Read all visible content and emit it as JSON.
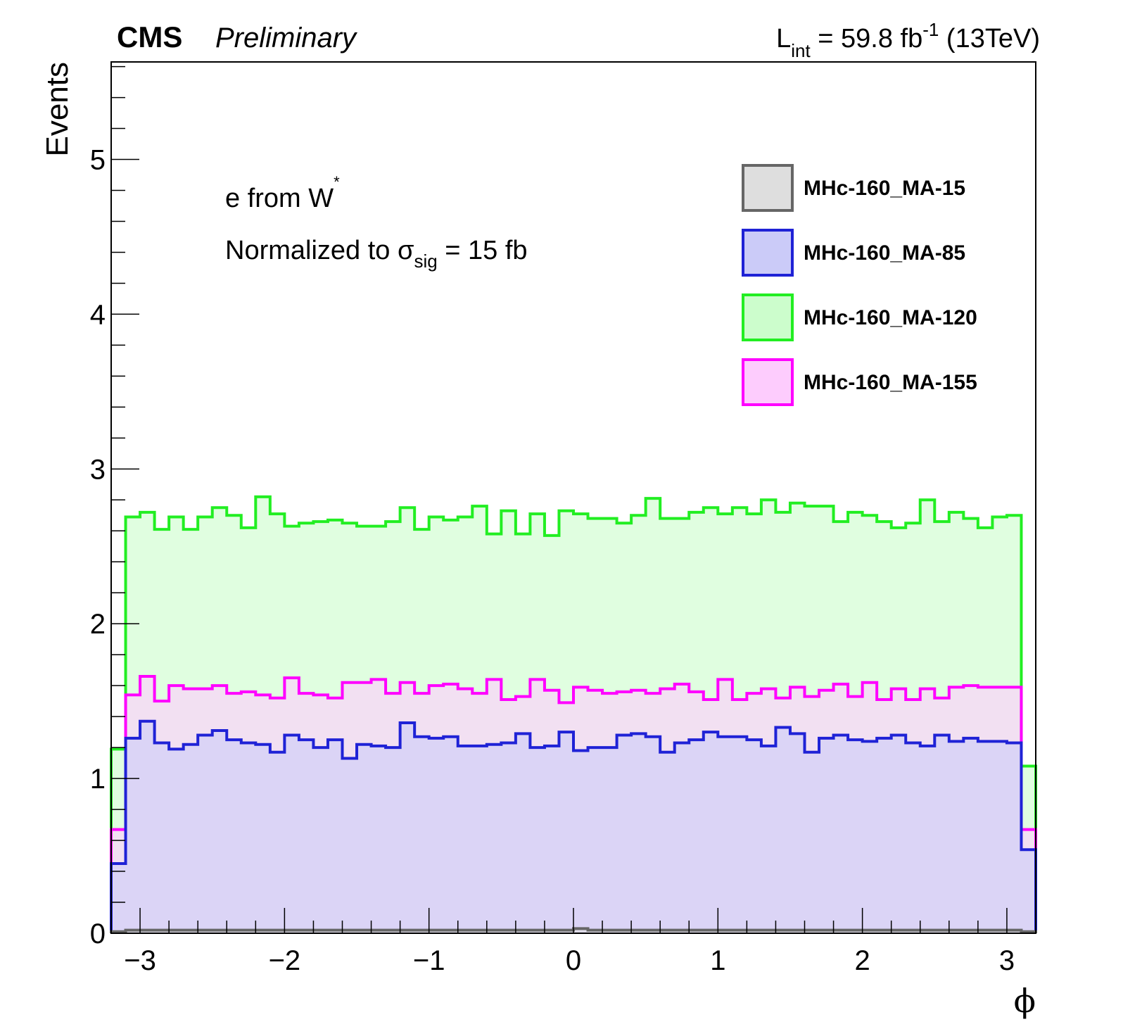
{
  "header": {
    "experiment": "CMS",
    "status": "Preliminary",
    "lumi_prefix": "L",
    "lumi_sub": "int",
    "lumi_mid": " = 59.8 fb",
    "lumi_sup": "-1",
    "lumi_suffix": " (13TeV)"
  },
  "annotations": {
    "line1_text": "e from W",
    "line1_sup": "*",
    "line2_text": "Normalized to σ",
    "line2_sub": "sig",
    "line2_suffix": " = 15 fb"
  },
  "colors": {
    "MA-15": {
      "line": "#666666",
      "fill": "#dedede"
    },
    "MA-85": {
      "line": "#1f22d6",
      "fill": "#cbcbf8"
    },
    "MA-120": {
      "line": "#22ee22",
      "fill": "#ccfdcc"
    },
    "MA-155": {
      "line": "#ff00ff",
      "fill": "#fdccfd"
    }
  },
  "chart_data": {
    "type": "histogram",
    "xlabel": "ϕ",
    "ylabel": "Events",
    "xlim": [
      -3.2,
      3.2
    ],
    "ylim": [
      0,
      5.63
    ],
    "x_ticks": [
      "−3",
      "−2",
      "−1",
      "0",
      "1",
      "2",
      "3"
    ],
    "x_tick_values": [
      -3,
      -2,
      -1,
      0,
      1,
      2,
      3
    ],
    "y_ticks": [
      "0",
      "1",
      "2",
      "3",
      "4",
      "5"
    ],
    "y_tick_values": [
      0,
      1,
      2,
      3,
      4,
      5
    ],
    "legend_position": "top-right",
    "bin_edges": [
      -3.2,
      -3.1,
      -3.0,
      -2.9,
      -2.8,
      -2.7,
      -2.6,
      -2.5,
      -2.4,
      -2.3,
      -2.2,
      -2.1,
      -2.0,
      -1.9,
      -1.8,
      -1.7,
      -1.6,
      -1.5,
      -1.4,
      -1.3,
      -1.2,
      -1.1,
      -1.0,
      -0.9,
      -0.8,
      -0.7,
      -0.6,
      -0.5,
      -0.4,
      -0.3,
      -0.2,
      -0.1,
      0.0,
      0.1,
      0.2,
      0.3,
      0.4,
      0.5,
      0.6,
      0.7,
      0.8,
      0.9,
      1.0,
      1.1,
      1.2,
      1.3,
      1.4,
      1.5,
      1.6,
      1.7,
      1.8,
      1.9,
      2.0,
      2.1,
      2.2,
      2.3,
      2.4,
      2.5,
      2.6,
      2.7,
      2.8,
      2.9,
      3.0,
      3.1,
      3.2
    ],
    "series": [
      {
        "name": "MHc-160_MA-15",
        "key": "MA-15",
        "values": [
          0.01,
          0.02,
          0.02,
          0.02,
          0.02,
          0.02,
          0.02,
          0.02,
          0.02,
          0.02,
          0.02,
          0.02,
          0.02,
          0.02,
          0.02,
          0.02,
          0.02,
          0.02,
          0.02,
          0.02,
          0.02,
          0.02,
          0.02,
          0.02,
          0.02,
          0.02,
          0.02,
          0.02,
          0.02,
          0.02,
          0.02,
          0.02,
          0.03,
          0.02,
          0.02,
          0.02,
          0.02,
          0.02,
          0.02,
          0.02,
          0.02,
          0.02,
          0.02,
          0.02,
          0.02,
          0.02,
          0.02,
          0.02,
          0.02,
          0.02,
          0.02,
          0.02,
          0.02,
          0.02,
          0.02,
          0.02,
          0.02,
          0.02,
          0.02,
          0.02,
          0.02,
          0.02,
          0.02,
          0.01
        ]
      },
      {
        "name": "MHc-160_MA-85",
        "key": "MA-85",
        "values": [
          0.45,
          1.26,
          1.37,
          1.23,
          1.19,
          1.22,
          1.28,
          1.31,
          1.25,
          1.23,
          1.22,
          1.17,
          1.28,
          1.25,
          1.2,
          1.25,
          1.13,
          1.22,
          1.21,
          1.2,
          1.36,
          1.27,
          1.26,
          1.27,
          1.21,
          1.21,
          1.22,
          1.23,
          1.29,
          1.2,
          1.21,
          1.3,
          1.18,
          1.2,
          1.2,
          1.28,
          1.29,
          1.27,
          1.17,
          1.23,
          1.25,
          1.3,
          1.27,
          1.27,
          1.25,
          1.21,
          1.33,
          1.29,
          1.17,
          1.26,
          1.28,
          1.25,
          1.24,
          1.26,
          1.28,
          1.23,
          1.21,
          1.28,
          1.24,
          1.26,
          1.24,
          1.24,
          1.23,
          0.54
        ]
      },
      {
        "name": "MHc-160_MA-120",
        "key": "MA-120",
        "values": [
          1.19,
          2.69,
          2.72,
          2.61,
          2.69,
          2.61,
          2.69,
          2.75,
          2.7,
          2.62,
          2.82,
          2.71,
          2.63,
          2.65,
          2.66,
          2.67,
          2.65,
          2.63,
          2.63,
          2.66,
          2.75,
          2.61,
          2.69,
          2.67,
          2.69,
          2.76,
          2.58,
          2.73,
          2.58,
          2.71,
          2.57,
          2.73,
          2.71,
          2.68,
          2.68,
          2.65,
          2.7,
          2.81,
          2.68,
          2.68,
          2.72,
          2.75,
          2.71,
          2.75,
          2.71,
          2.8,
          2.72,
          2.78,
          2.76,
          2.76,
          2.66,
          2.72,
          2.7,
          2.66,
          2.62,
          2.65,
          2.8,
          2.66,
          2.72,
          2.68,
          2.62,
          2.69,
          2.7,
          1.08
        ]
      },
      {
        "name": "MHc-160_MA-155",
        "key": "MA-155",
        "values": [
          0.67,
          1.54,
          1.66,
          1.5,
          1.6,
          1.58,
          1.58,
          1.6,
          1.55,
          1.56,
          1.54,
          1.52,
          1.65,
          1.55,
          1.54,
          1.52,
          1.62,
          1.62,
          1.64,
          1.55,
          1.62,
          1.55,
          1.6,
          1.61,
          1.58,
          1.55,
          1.64,
          1.51,
          1.53,
          1.64,
          1.57,
          1.49,
          1.59,
          1.57,
          1.55,
          1.56,
          1.57,
          1.55,
          1.58,
          1.61,
          1.56,
          1.51,
          1.64,
          1.51,
          1.55,
          1.58,
          1.52,
          1.59,
          1.53,
          1.57,
          1.61,
          1.53,
          1.62,
          1.51,
          1.58,
          1.51,
          1.58,
          1.52,
          1.59,
          1.6,
          1.59,
          1.59,
          1.59,
          0.67
        ]
      }
    ]
  }
}
